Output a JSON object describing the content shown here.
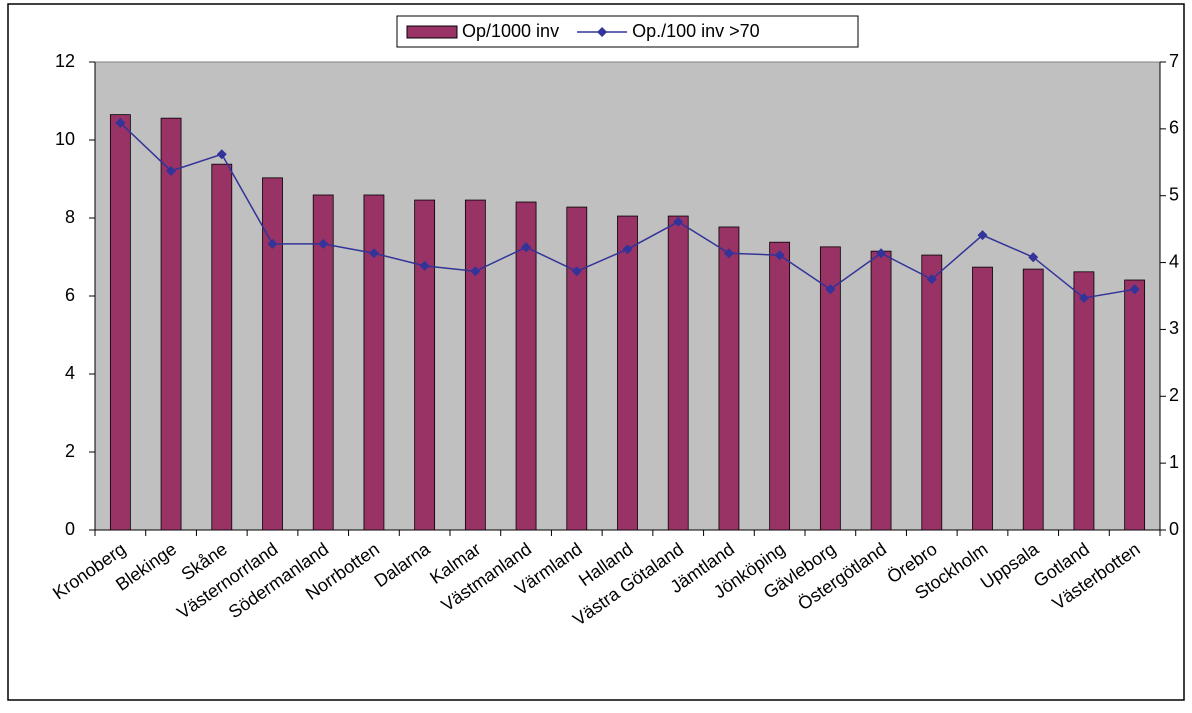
{
  "chart_data": {
    "type": "bar-line",
    "categories": [
      "Kronoberg",
      "Blekinge",
      "Skåne",
      "Västernorrland",
      "Södermanland",
      "Norrbotten",
      "Dalarna",
      "Kalmar",
      "Västmanland",
      "Värmland",
      "Halland",
      "Västra Götaland",
      "Jämtland",
      "Jönköping",
      "Gävleborg",
      "Östergötland",
      "Örebro",
      "Stockholm",
      "Uppsala",
      "Gotland",
      "Västerbotten"
    ],
    "series": [
      {
        "name": "Op/1000 inv",
        "type": "bar",
        "color": "#993366",
        "values": [
          10.65,
          10.56,
          9.38,
          9.03,
          8.59,
          8.59,
          8.46,
          8.46,
          8.41,
          8.28,
          8.05,
          8.05,
          7.77,
          7.38,
          7.26,
          7.15,
          7.05,
          6.74,
          6.69,
          6.62,
          6.41
        ]
      },
      {
        "name": "Op./100 inv >70",
        "type": "line",
        "axis": "y2",
        "color": "#333399",
        "values": [
          6.09,
          5.37,
          5.62,
          4.28,
          4.28,
          4.14,
          3.95,
          3.87,
          4.23,
          3.87,
          4.2,
          4.61,
          4.14,
          4.11,
          3.6,
          4.14,
          3.75,
          4.41,
          4.08,
          3.47,
          3.6
        ]
      }
    ],
    "ylim": [
      0,
      12
    ],
    "yticks": [
      0,
      2,
      4,
      6,
      8,
      10,
      12
    ],
    "y2lim": [
      0,
      7
    ],
    "y2ticks": [
      0,
      1,
      2,
      3,
      4,
      5,
      6,
      7
    ],
    "legend": "top",
    "plot_background": "#c0c0c0"
  }
}
